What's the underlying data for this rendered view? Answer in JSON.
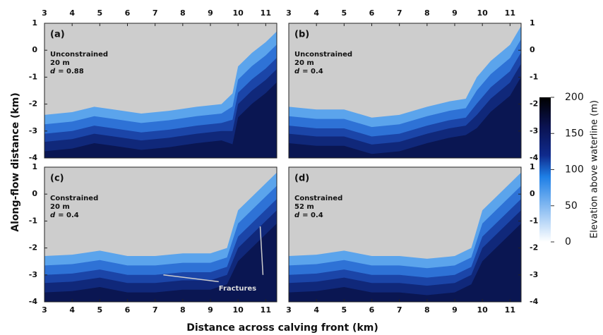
{
  "chart_data": {
    "type": "map-panels",
    "x_label": "Distance across calving front (km)",
    "y_label": "Along-flow distance (km)",
    "xlim": [
      3,
      11.4
    ],
    "ylim": [
      -4,
      1
    ],
    "xticks": [
      3,
      4,
      5,
      6,
      7,
      8,
      9,
      10,
      11
    ],
    "yticks": [
      1,
      0,
      -1,
      -2,
      -3,
      -4
    ],
    "colorbar": {
      "label": "Elevation above waterline (m)",
      "lim": [
        0,
        200
      ],
      "ticks": [
        0,
        50,
        100,
        150,
        200
      ]
    },
    "panels": [
      {
        "label": "(a)",
        "lines": [
          "Unconstrained",
          "20 m"
        ],
        "symbol": "d",
        "parameter": "= 0.88"
      },
      {
        "label": "(b)",
        "lines": [
          "Unconstrained",
          "20 m"
        ],
        "symbol": "d",
        "parameter": "= 0.4"
      },
      {
        "label": "(c)",
        "lines": [
          "Constrained",
          "20 m"
        ],
        "symbol": "d",
        "parameter": "= 0.4",
        "annotation": "Fractures"
      },
      {
        "label": "(d)",
        "lines": [
          "Constrained",
          "52 m"
        ],
        "symbol": "d",
        "parameter": "= 0.4"
      }
    ]
  }
}
